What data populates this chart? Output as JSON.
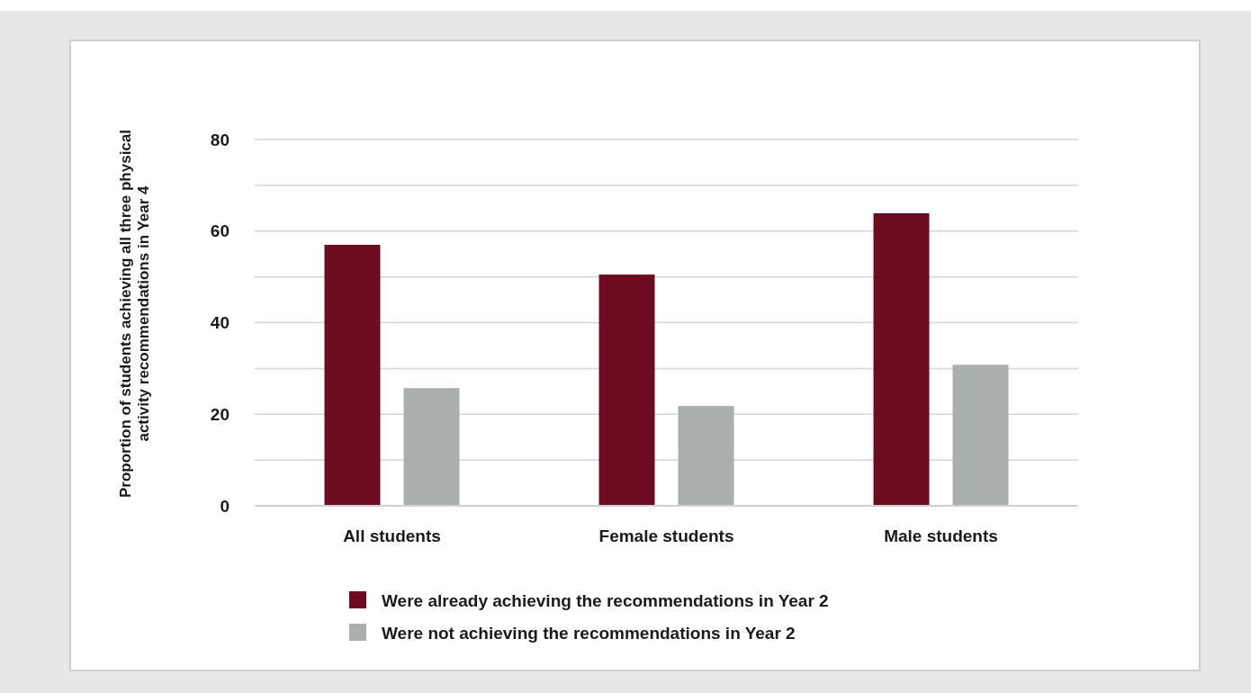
{
  "chart_data": {
    "type": "bar",
    "ylabel": "Proportion of students achieving all three physical activity recommendations in Year 4",
    "categories": [
      "All students",
      "Female students",
      "Male students"
    ],
    "series": [
      {
        "name": "Were already achieving the recommendations in Year 2",
        "color": "#6d0b20",
        "values": [
          57.0,
          50.5,
          63.9
        ]
      },
      {
        "name": "Were not achieving the recommendations in Year 2",
        "color": "#a9aeae",
        "values": [
          25.7,
          21.8,
          30.8
        ]
      }
    ],
    "ylim": [
      0,
      80
    ],
    "yticks": [
      0,
      {
        "value": 10,
        "label": null
      },
      20,
      {
        "value": 30,
        "label": null
      },
      40,
      {
        "value": 50,
        "label": null
      },
      60,
      {
        "value": 70,
        "label": null
      },
      80
    ],
    "grid": "y",
    "legend": "bottom"
  }
}
